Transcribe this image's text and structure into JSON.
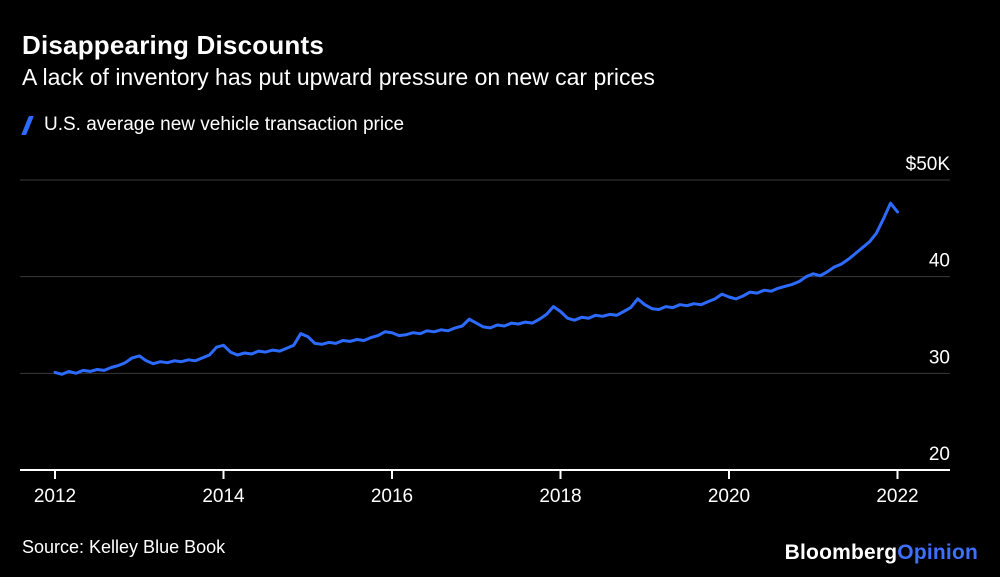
{
  "header": {
    "title": "Disappearing Discounts",
    "subtitle": "A lack of inventory has put upward pressure on new car prices"
  },
  "legend": {
    "label": "U.S. average new vehicle transaction price"
  },
  "footer": {
    "source": "Source: Kelley Blue Book",
    "brand": "Bloomberg",
    "brand_accent": "Opinion"
  },
  "colors": {
    "background": "#000000",
    "line": "#2d6bff",
    "grid": "#3a3a3a",
    "axis": "#ffffff",
    "text": "#ffffff",
    "accent": "#3e6fff"
  },
  "chart_data": {
    "type": "line",
    "title": "Disappearing Discounts",
    "subtitle": "A lack of inventory has put upward pressure on new car prices",
    "series_name": "U.S. average new vehicle transaction price",
    "unit": "USD thousands",
    "x_start_year": 2012,
    "x_step_years": 0.0833333,
    "ylim": [
      20,
      52
    ],
    "xlim": [
      2011.6,
      2022.6
    ],
    "grid": "horizontal-only",
    "legend_position": "top-left",
    "y_ticks": [
      {
        "value": 50,
        "label": "$50K"
      },
      {
        "value": 40,
        "label": "40"
      },
      {
        "value": 30,
        "label": "30"
      },
      {
        "value": 20,
        "label": "20"
      }
    ],
    "x_ticks": [
      {
        "value": 2012,
        "label": "2012"
      },
      {
        "value": 2014,
        "label": "2014"
      },
      {
        "value": 2016,
        "label": "2016"
      },
      {
        "value": 2018,
        "label": "2018"
      },
      {
        "value": 2020,
        "label": "2020"
      },
      {
        "value": 2022,
        "label": "2022"
      }
    ],
    "values": [
      30.1,
      29.9,
      30.2,
      30.0,
      30.3,
      30.2,
      30.4,
      30.3,
      30.6,
      30.8,
      31.1,
      31.6,
      31.8,
      31.3,
      31.0,
      31.2,
      31.1,
      31.3,
      31.2,
      31.4,
      31.3,
      31.6,
      31.9,
      32.7,
      32.9,
      32.2,
      31.9,
      32.1,
      32.0,
      32.3,
      32.2,
      32.4,
      32.3,
      32.6,
      32.9,
      34.1,
      33.8,
      33.1,
      33.0,
      33.2,
      33.1,
      33.4,
      33.3,
      33.5,
      33.4,
      33.7,
      33.9,
      34.3,
      34.2,
      33.9,
      34.0,
      34.2,
      34.1,
      34.4,
      34.3,
      34.5,
      34.4,
      34.7,
      34.9,
      35.6,
      35.2,
      34.8,
      34.7,
      35.0,
      34.9,
      35.2,
      35.1,
      35.3,
      35.2,
      35.6,
      36.1,
      36.9,
      36.4,
      35.7,
      35.5,
      35.8,
      35.7,
      36.0,
      35.9,
      36.1,
      36.0,
      36.4,
      36.8,
      37.7,
      37.1,
      36.7,
      36.6,
      36.9,
      36.8,
      37.1,
      37.0,
      37.2,
      37.1,
      37.4,
      37.7,
      38.2,
      37.9,
      37.7,
      38.0,
      38.4,
      38.3,
      38.6,
      38.5,
      38.8,
      39.0,
      39.2,
      39.5,
      40.0,
      40.3,
      40.1,
      40.5,
      41.0,
      41.3,
      41.8,
      42.4,
      43.0,
      43.6,
      44.5,
      46.0,
      47.6,
      46.7
    ]
  }
}
